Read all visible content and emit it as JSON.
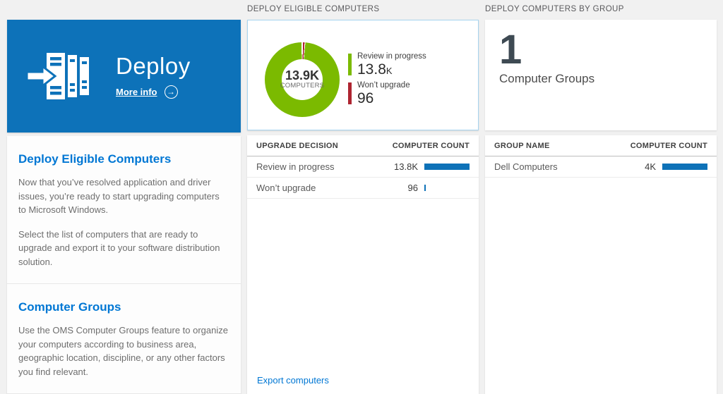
{
  "colors": {
    "tile_blue": "#0d72b9",
    "accent_blue": "#0077d4",
    "bar_blue": "#0e72b8",
    "green": "#7bba00",
    "red": "#ae2531",
    "card_border_blue": "#a7d4ef"
  },
  "left_tile": {
    "title": "Deploy",
    "more_info_label": "More info"
  },
  "left_panel": {
    "sections": [
      {
        "heading": "Deploy Eligible Computers",
        "para1": "Now that you’ve resolved application and driver issues, you’re ready to start upgrading computers to Microsoft Windows.",
        "para2": "Select the list of computers that are ready to upgrade and export it to your software distribution solution."
      },
      {
        "heading": "Computer Groups",
        "para1": "Use the OMS Computer Groups feature to organize your computers according to business area, geographic location, discipline, or any other factors you find relevant."
      }
    ]
  },
  "middle_column": {
    "header": "DEPLOY ELIGIBLE COMPUTERS",
    "donut": {
      "center_value": "13.9K",
      "center_label": "COMPUTERS",
      "legend": [
        {
          "label": "Review in progress",
          "value": "13.8",
          "suffix": "K",
          "color": "#7bba00"
        },
        {
          "label": "Won’t upgrade",
          "value": "96",
          "suffix": "",
          "color": "#ae2531"
        }
      ]
    },
    "table": {
      "columns": [
        "UPGRADE DECISION",
        "COMPUTER COUNT"
      ],
      "rows": [
        {
          "label": "Review in progress",
          "value": "13.8K",
          "bar_pct": 100
        },
        {
          "label": "Won’t upgrade",
          "value": "96",
          "bar_pct": 1.5
        }
      ]
    },
    "export_link": "Export computers"
  },
  "right_column": {
    "header": "DEPLOY COMPUTERS BY GROUP",
    "summary": {
      "count": "1",
      "label": "Computer Groups"
    },
    "table": {
      "columns": [
        "GROUP NAME",
        "COMPUTER COUNT"
      ],
      "rows": [
        {
          "label": "Dell Computers",
          "value": "4K",
          "bar_pct": 100
        }
      ]
    }
  },
  "chart_data": [
    {
      "type": "pie",
      "subtype": "donut",
      "title": "Deploy Eligible Computers",
      "labels": [
        "Review in progress",
        "Won’t upgrade"
      ],
      "values": [
        13800,
        96
      ],
      "colors": [
        "#7bba00",
        "#ae2531"
      ],
      "center_value": "13.9K",
      "center_label": "COMPUTERS",
      "legend_position": "right"
    },
    {
      "type": "table",
      "columns": [
        "UPGRADE DECISION",
        "COMPUTER COUNT"
      ],
      "rows": [
        [
          "Review in progress",
          13800
        ],
        [
          "Won’t upgrade",
          96
        ]
      ],
      "bar_scale_max": 13800
    },
    {
      "type": "table",
      "columns": [
        "GROUP NAME",
        "COMPUTER COUNT"
      ],
      "rows": [
        [
          "Dell Computers",
          4000
        ]
      ],
      "bar_scale_max": 4000
    }
  ]
}
